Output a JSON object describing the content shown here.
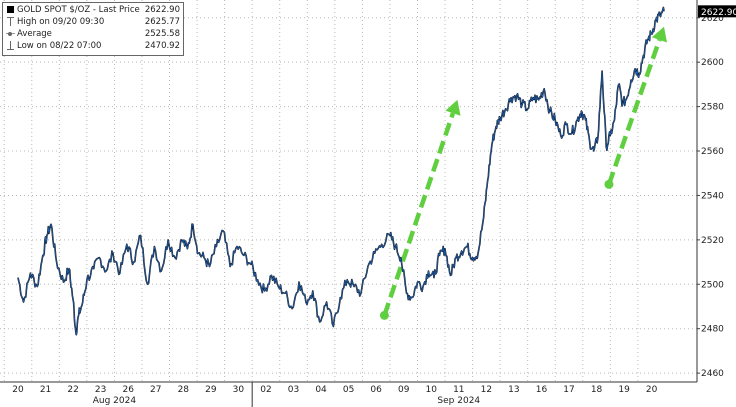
{
  "legend": {
    "series_title": "GOLD SPOT $/OZ - Last Price",
    "last_price": "2622.90",
    "high_label": "High on 09/20 09:30",
    "high_value": "2625.77",
    "average_label": "Average",
    "average_value": "2525.58",
    "low_label": "Low on 08/22 07:00",
    "low_value": "2470.92"
  },
  "chart_data": {
    "type": "line",
    "title": "",
    "xlabel": "",
    "ylabel": "",
    "ylim": [
      2456,
      2628
    ],
    "y_ticks": [
      2460,
      2480,
      2500,
      2520,
      2540,
      2560,
      2580,
      2600,
      2620
    ],
    "last_value_label": "2622.90",
    "x_day_labels": [
      "20",
      "21",
      "22",
      "23",
      "26",
      "27",
      "28",
      "29",
      "30",
      "02",
      "03",
      "04",
      "05",
      "06",
      "09",
      "10",
      "11",
      "12",
      "13",
      "16",
      "17",
      "18",
      "19",
      "20"
    ],
    "x_month_labels": [
      "Aug 2024",
      "Sep 2024"
    ],
    "grid": true,
    "series": [
      {
        "color": "#1f5fb0",
        "x": [
          0,
          0.2,
          0.45,
          0.7,
          0.9,
          1.05,
          1.2,
          1.4,
          1.65,
          1.85,
          2.0,
          2.1,
          2.2,
          2.35,
          2.5,
          2.75,
          2.95,
          3.2,
          3.45,
          3.7,
          3.95,
          4.2,
          4.45,
          4.7,
          4.95,
          5.2,
          5.45,
          5.7,
          5.95,
          6.15,
          6.35,
          6.55,
          6.75,
          6.95,
          7.2,
          7.45,
          7.7,
          7.95,
          8.2,
          8.45,
          8.7,
          8.95,
          9.2,
          9.45,
          9.7,
          9.95,
          10.2,
          10.45,
          10.7,
          10.95,
          11.2,
          11.45,
          11.7,
          11.95,
          12.2,
          12.45,
          12.7,
          12.95,
          13.2,
          13.5,
          13.7,
          13.9,
          14.1,
          14.3,
          14.5,
          14.7,
          14.9,
          15.1,
          15.3,
          15.5,
          15.7,
          15.9,
          16.1,
          16.3,
          16.5,
          16.7,
          16.9,
          17.05,
          17.2,
          17.35,
          17.5,
          17.7,
          17.9,
          18.1,
          18.3,
          18.5,
          18.7,
          18.9,
          19.1,
          19.3,
          19.5,
          19.7,
          19.9,
          20.1,
          20.3,
          20.45,
          20.6,
          20.75,
          20.9,
          21.05,
          21.2,
          21.35,
          21.5,
          21.65,
          21.8,
          21.95,
          22.1,
          22.25,
          22.4,
          22.55,
          22.7,
          22.85,
          23.0,
          23.15,
          23.3,
          23.45
        ],
        "values": [
          2503,
          2492,
          2505,
          2499,
          2513,
          2522,
          2527,
          2510,
          2501,
          2507,
          2493,
          2478,
          2486,
          2492,
          2502,
          2507,
          2512,
          2506,
          2514,
          2505,
          2518,
          2510,
          2522,
          2500,
          2517,
          2506,
          2520,
          2512,
          2520,
          2516,
          2527,
          2514,
          2512,
          2508,
          2517,
          2524,
          2508,
          2517,
          2513,
          2509,
          2502,
          2497,
          2504,
          2499,
          2496,
          2489,
          2501,
          2492,
          2497,
          2483,
          2492,
          2481,
          2494,
          2502,
          2499,
          2496,
          2508,
          2514,
          2518,
          2522,
          2517,
          2512,
          2496,
          2494,
          2501,
          2499,
          2506,
          2503,
          2513,
          2516,
          2504,
          2512,
          2515,
          2517,
          2512,
          2514,
          2530,
          2547,
          2563,
          2571,
          2575,
          2579,
          2584,
          2585,
          2581,
          2579,
          2584,
          2583,
          2588,
          2578,
          2574,
          2567,
          2572,
          2568,
          2574,
          2578,
          2574,
          2564,
          2560,
          2566,
          2596,
          2562,
          2567,
          2574,
          2590,
          2581,
          2584,
          2592,
          2597,
          2595,
          2603,
          2610,
          2613,
          2619,
          2621,
          2622.9
        ]
      }
    ],
    "annotations": [
      {
        "type": "arrow",
        "color": "#5fcf3f",
        "x1": 13.3,
        "y1": 2486,
        "x2": 15.95,
        "y2": 2583
      },
      {
        "type": "arrow",
        "color": "#5fcf3f",
        "x1": 21.45,
        "y1": 2545,
        "x2": 23.45,
        "y2": 2616
      }
    ]
  }
}
